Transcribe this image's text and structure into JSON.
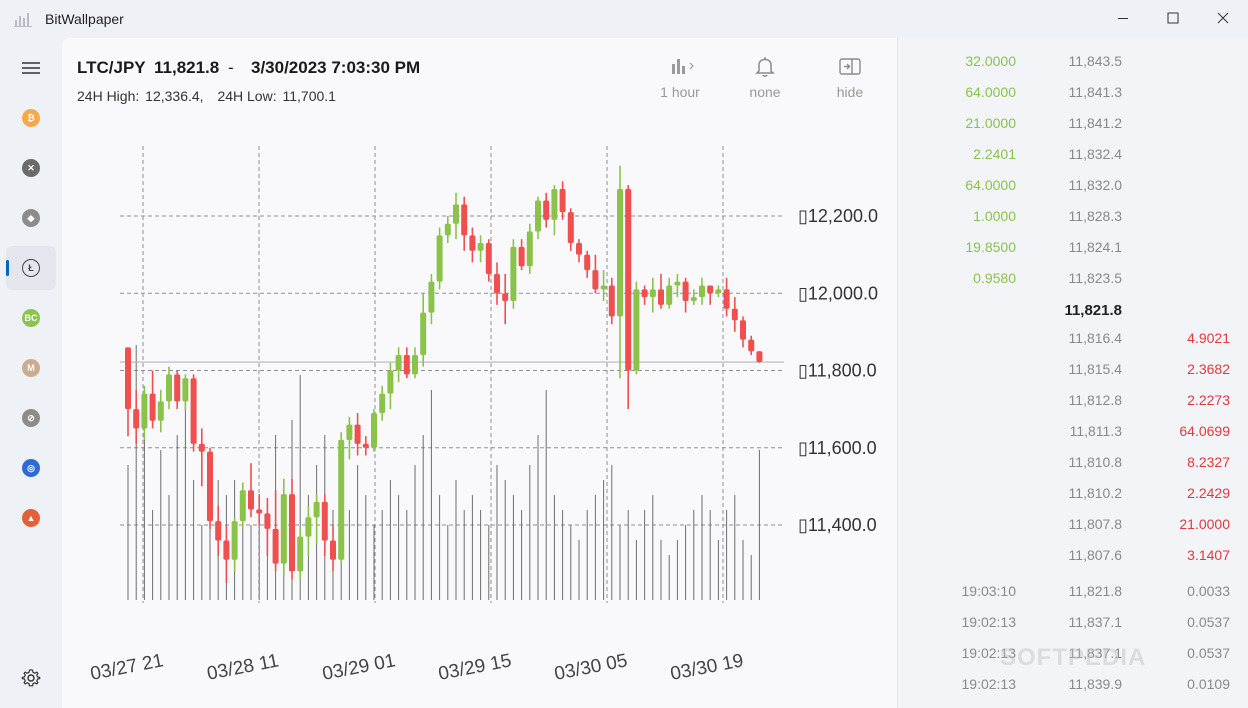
{
  "window": {
    "title": "BitWallpaper"
  },
  "sidebar": {
    "items": [
      {
        "name": "bitcoin",
        "symbol": "₿",
        "color": "#f6a94a"
      },
      {
        "name": "xrp",
        "symbol": "✕",
        "color": "#6b6b6b"
      },
      {
        "name": "ethereum",
        "symbol": "◆",
        "color": "#8c8c8c"
      },
      {
        "name": "litecoin",
        "symbol": "Ł",
        "color": "#444444",
        "active": true
      },
      {
        "name": "bitcoin-cash",
        "symbol": "BC",
        "color": "#8dc351"
      },
      {
        "name": "monacoin",
        "symbol": "M",
        "color": "#c9ad8c"
      },
      {
        "name": "stellar",
        "symbol": "⊘",
        "color": "#8c8c8c"
      },
      {
        "name": "qtum",
        "symbol": "◎",
        "color": "#2e6bd6"
      },
      {
        "name": "bat",
        "symbol": "▲",
        "color": "#e2603c"
      }
    ]
  },
  "header": {
    "pair": "LTC/JPY",
    "price": "11,821.8",
    "dash": "-",
    "datetime": "3/30/2023 7:03:30 PM",
    "high_label": "24H High:",
    "high_value": "12,336.4,",
    "low_label": "24H Low:",
    "low_value": "11,700.1"
  },
  "toolbar": {
    "interval_label": "1 hour",
    "alert_label": "none",
    "hide_label": "hide"
  },
  "chart_data": {
    "type": "candlestick",
    "y_ticks": [
      "▯12,200.0",
      "▯12,000.0",
      "▯11,800.0",
      "▯11,600.0",
      "▯11,400.0"
    ],
    "y_tick_values": [
      12200,
      12000,
      11800,
      11600,
      11400
    ],
    "x_ticks": [
      "03/27 21",
      "03/28 11",
      "03/29 01",
      "03/29 15",
      "03/30 05",
      "03/30 19"
    ],
    "last_price": 11821.8,
    "colors": {
      "up": "#8bc34a",
      "down": "#ef4f4f",
      "grid": "#8a8f99"
    },
    "candles": [
      [
        11860,
        11860,
        11630,
        11700
      ],
      [
        11700,
        11750,
        11610,
        11650
      ],
      [
        11650,
        11760,
        11620,
        11740
      ],
      [
        11740,
        11800,
        11650,
        11670
      ],
      [
        11670,
        11750,
        11640,
        11720
      ],
      [
        11720,
        11810,
        11700,
        11790
      ],
      [
        11790,
        11800,
        11700,
        11720
      ],
      [
        11720,
        11790,
        11700,
        11780
      ],
      [
        11780,
        11790,
        11590,
        11610
      ],
      [
        11610,
        11650,
        11500,
        11590
      ],
      [
        11590,
        11600,
        11390,
        11410
      ],
      [
        11410,
        11450,
        11320,
        11360
      ],
      [
        11360,
        11400,
        11250,
        11310
      ],
      [
        11310,
        11420,
        11280,
        11410
      ],
      [
        11410,
        11510,
        11390,
        11490
      ],
      [
        11490,
        11560,
        11420,
        11440
      ],
      [
        11440,
        11480,
        11400,
        11430
      ],
      [
        11430,
        11470,
        11320,
        11390
      ],
      [
        11390,
        11490,
        11280,
        11300
      ],
      [
        11300,
        11520,
        11270,
        11480
      ],
      [
        11480,
        11520,
        11260,
        11280
      ],
      [
        11280,
        11390,
        11260,
        11370
      ],
      [
        11370,
        11450,
        11320,
        11420
      ],
      [
        11420,
        11480,
        11350,
        11460
      ],
      [
        11460,
        11480,
        11320,
        11360
      ],
      [
        11360,
        11400,
        11280,
        11310
      ],
      [
        11310,
        11640,
        11300,
        11620
      ],
      [
        11620,
        11680,
        11570,
        11660
      ],
      [
        11660,
        11690,
        11580,
        11610
      ],
      [
        11610,
        11630,
        11580,
        11600
      ],
      [
        11600,
        11700,
        11590,
        11690
      ],
      [
        11690,
        11760,
        11670,
        11740
      ],
      [
        11740,
        11820,
        11700,
        11800
      ],
      [
        11800,
        11860,
        11770,
        11840
      ],
      [
        11840,
        11860,
        11780,
        11790
      ],
      [
        11790,
        11860,
        11780,
        11840
      ],
      [
        11840,
        12000,
        11810,
        11950
      ],
      [
        11950,
        12050,
        11920,
        12030
      ],
      [
        12030,
        12170,
        12010,
        12150
      ],
      [
        12150,
        12200,
        12130,
        12180
      ],
      [
        12180,
        12260,
        12140,
        12230
      ],
      [
        12230,
        12250,
        12110,
        12150
      ],
      [
        12150,
        12170,
        12080,
        12110
      ],
      [
        12110,
        12150,
        12080,
        12130
      ],
      [
        12130,
        12140,
        12030,
        12050
      ],
      [
        12050,
        12080,
        11970,
        12000
      ],
      [
        12000,
        12050,
        11920,
        11980
      ],
      [
        11980,
        12140,
        11960,
        12120
      ],
      [
        12120,
        12140,
        12060,
        12070
      ],
      [
        12070,
        12180,
        12050,
        12160
      ],
      [
        12160,
        12250,
        12140,
        12240
      ],
      [
        12240,
        12260,
        12170,
        12190
      ],
      [
        12190,
        12280,
        12150,
        12270
      ],
      [
        12270,
        12290,
        12190,
        12210
      ],
      [
        12210,
        12220,
        12110,
        12130
      ],
      [
        12130,
        12140,
        12080,
        12100
      ],
      [
        12100,
        12110,
        12040,
        12060
      ],
      [
        12060,
        12100,
        12000,
        12010
      ],
      [
        12010,
        12060,
        11980,
        12020
      ],
      [
        12020,
        12040,
        11920,
        11940
      ],
      [
        11940,
        12330,
        11780,
        12270
      ],
      [
        12270,
        12280,
        11700,
        11800
      ],
      [
        11800,
        12030,
        11790,
        12010
      ],
      [
        12010,
        12020,
        11970,
        11990
      ],
      [
        11990,
        12040,
        11950,
        12010
      ],
      [
        12010,
        12050,
        11960,
        11970
      ],
      [
        11970,
        12040,
        11960,
        12020
      ],
      [
        12020,
        12050,
        11990,
        12030
      ],
      [
        12030,
        12040,
        11950,
        11980
      ],
      [
        11980,
        12010,
        11970,
        11990
      ],
      [
        11990,
        12040,
        11970,
        12020
      ],
      [
        12020,
        12020,
        11970,
        12000
      ],
      [
        12000,
        12020,
        11990,
        12010
      ],
      [
        12010,
        12040,
        11940,
        11960
      ],
      [
        11960,
        11990,
        11900,
        11930
      ],
      [
        11930,
        11940,
        11860,
        11880
      ],
      [
        11880,
        11890,
        11840,
        11850
      ],
      [
        11850,
        11850,
        11820,
        11822
      ]
    ],
    "volumes": [
      0.45,
      0.85,
      0.6,
      0.3,
      0.5,
      0.35,
      0.55,
      0.7,
      0.4,
      0.25,
      0.3,
      0.4,
      0.35,
      0.4,
      0.3,
      0.25,
      0.35,
      0.3,
      0.55,
      0.4,
      0.6,
      0.75,
      0.35,
      0.45,
      0.55,
      0.3,
      0.4,
      0.3,
      0.45,
      0.35,
      0.25,
      0.3,
      0.4,
      0.35,
      0.3,
      0.45,
      0.55,
      0.7,
      0.35,
      0.25,
      0.4,
      0.3,
      0.35,
      0.3,
      0.25,
      0.45,
      0.4,
      0.35,
      0.3,
      0.45,
      0.55,
      0.7,
      0.35,
      0.3,
      0.25,
      0.2,
      0.3,
      0.35,
      0.4,
      0.45,
      0.25,
      0.3,
      0.2,
      0.3,
      0.35,
      0.2,
      0.15,
      0.2,
      0.25,
      0.3,
      0.35,
      0.3,
      0.2,
      0.3,
      0.35,
      0.2,
      0.15,
      0.5
    ]
  },
  "orderbook": {
    "asks": [
      {
        "amount": "32.0000",
        "price": "11,843.5"
      },
      {
        "amount": "64.0000",
        "price": "11,841.3"
      },
      {
        "amount": "21.0000",
        "price": "11,841.2"
      },
      {
        "amount": "2.2401",
        "price": "11,832.4"
      },
      {
        "amount": "64.0000",
        "price": "11,832.0"
      },
      {
        "amount": "1.0000",
        "price": "11,828.3"
      },
      {
        "amount": "19.8500",
        "price": "11,824.1"
      },
      {
        "amount": "0.9580",
        "price": "11,823.5"
      }
    ],
    "mid_price": "11,821.8",
    "bids": [
      {
        "price": "11,816.4",
        "amount": "4.9021"
      },
      {
        "price": "11,815.4",
        "amount": "2.3682"
      },
      {
        "price": "11,812.8",
        "amount": "2.2273"
      },
      {
        "price": "11,811.3",
        "amount": "64.0699"
      },
      {
        "price": "11,810.8",
        "amount": "8.2327"
      },
      {
        "price": "11,810.2",
        "amount": "2.2429"
      },
      {
        "price": "11,807.8",
        "amount": "21.0000"
      },
      {
        "price": "11,807.6",
        "amount": "3.1407"
      }
    ]
  },
  "trades": [
    {
      "time": "19:03:10",
      "price": "11,821.8",
      "amount": "0.0033"
    },
    {
      "time": "19:02:13",
      "price": "11,837.1",
      "amount": "0.0537"
    },
    {
      "time": "19:02:13",
      "price": "11,837.1",
      "amount": "0.0537"
    },
    {
      "time": "19:02:13",
      "price": "11,839.9",
      "amount": "0.0109"
    }
  ],
  "watermark": "SOFTPEDIA"
}
